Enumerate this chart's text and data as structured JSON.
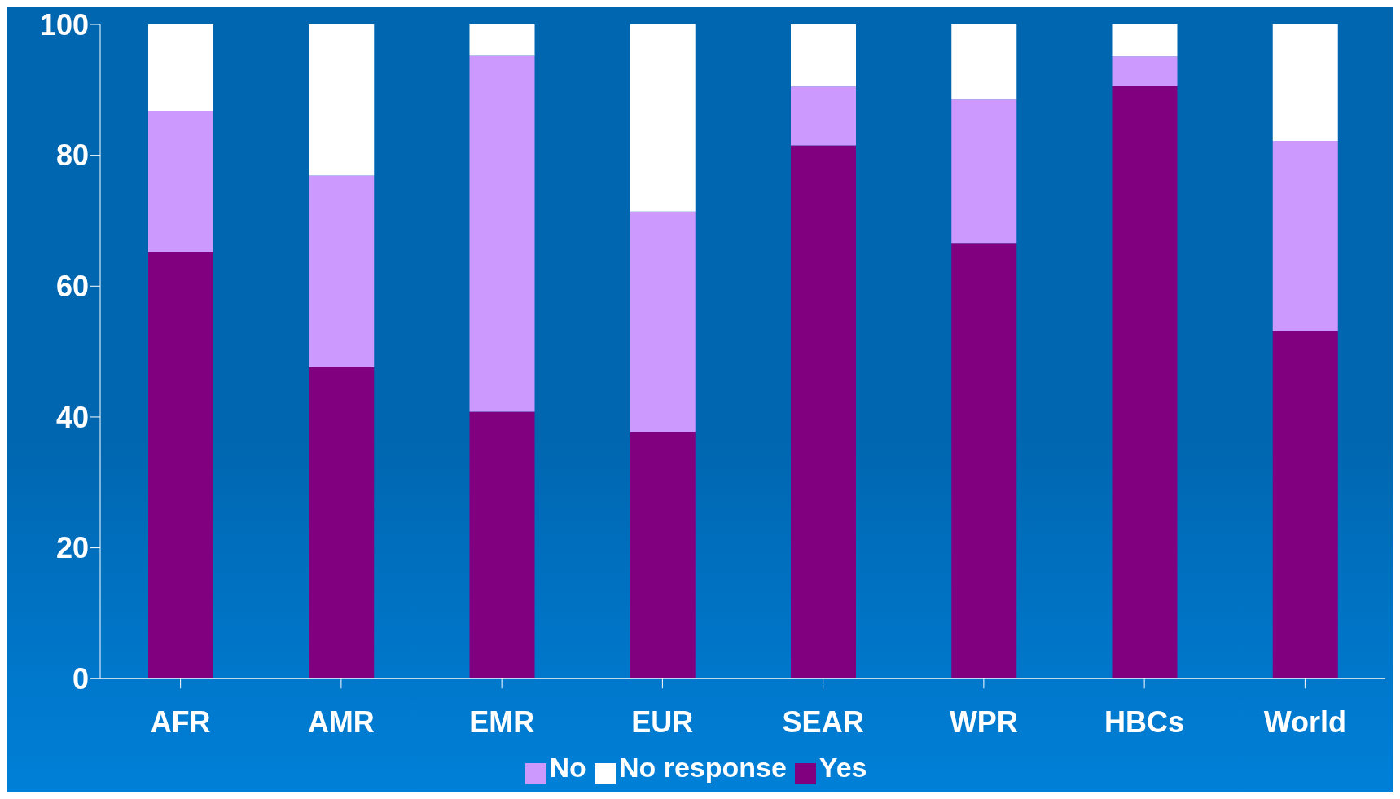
{
  "chart_data": {
    "type": "bar",
    "stacked": true,
    "categories": [
      "AFR",
      "AMR",
      "EMR",
      "EUR",
      "SEAR",
      "WPR",
      "HBCs",
      "World"
    ],
    "series": [
      {
        "name": "Yes",
        "color": "#800080",
        "values": [
          65.2,
          47.6,
          40.8,
          37.7,
          81.5,
          66.6,
          90.6,
          53.1
        ]
      },
      {
        "name": "No",
        "color": "#cc99ff",
        "values": [
          21.6,
          29.3,
          54.4,
          33.7,
          9.0,
          21.9,
          4.5,
          29.1
        ]
      },
      {
        "name": "No response",
        "color": "#ffffff",
        "values": [
          13.2,
          23.1,
          4.8,
          28.6,
          9.5,
          11.5,
          4.9,
          17.8
        ]
      }
    ],
    "ylim": [
      0,
      100
    ],
    "yticks": [
      0,
      20,
      40,
      60,
      80,
      100
    ],
    "grid": false,
    "legend": "bottom"
  }
}
